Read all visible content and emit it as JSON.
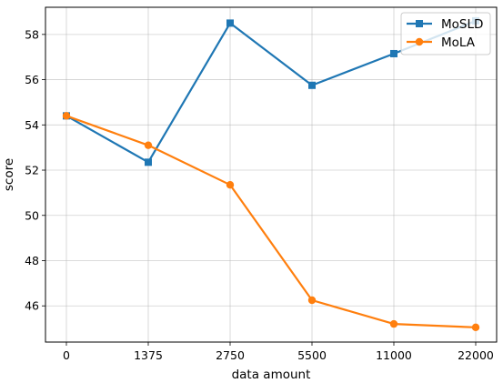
{
  "chart_data": {
    "type": "line",
    "categories": [
      "0",
      "1375",
      "2750",
      "5500",
      "11000",
      "22000"
    ],
    "series": [
      {
        "name": "MoSLD",
        "marker": "square",
        "color": "#1f77b4",
        "values": [
          54.4,
          52.35,
          58.5,
          55.75,
          57.15,
          58.6
        ]
      },
      {
        "name": "MoLA",
        "marker": "circle",
        "color": "#ff7f0e",
        "values": [
          54.4,
          53.1,
          51.35,
          46.25,
          45.2,
          45.05
        ]
      }
    ],
    "title": "",
    "xlabel": "data amount",
    "ylabel": "score",
    "ylim": [
      44.4,
      59.2
    ],
    "yticks": [
      "46",
      "48",
      "50",
      "52",
      "54",
      "56",
      "58"
    ],
    "grid": true,
    "legend_position": "top-right"
  }
}
